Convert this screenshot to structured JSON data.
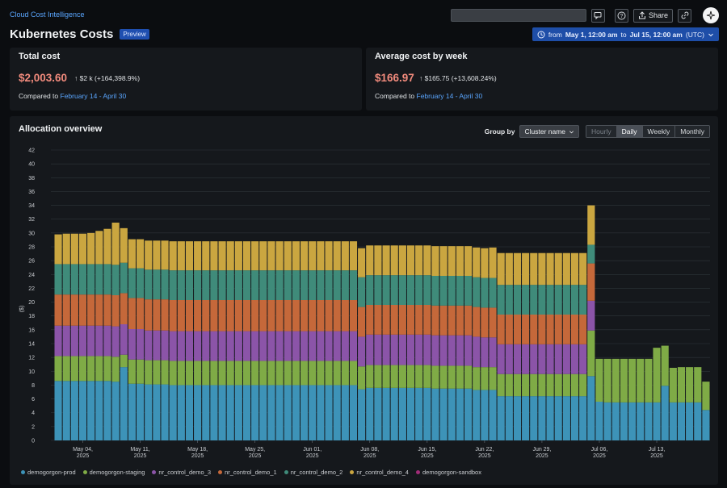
{
  "header": {
    "breadcrumb": "Cloud Cost Intelligence",
    "title": "Kubernetes Costs",
    "badge": "Preview",
    "share_label": "Share"
  },
  "time_range": {
    "prefix": "from",
    "start": "May 1, 12:00 am",
    "mid": "to",
    "end": "Jul 15, 12:00 am",
    "tz": "(UTC)"
  },
  "total_cost": {
    "title": "Total cost",
    "value": "$2,003.60",
    "delta": "$2 k (+164,398.9%)",
    "compared_prefix": "Compared to",
    "compared_range": "February 14 - April 30"
  },
  "avg_cost": {
    "title": "Average cost by week",
    "value": "$166.97",
    "delta": "$165.75 (+13,608.24%)",
    "compared_prefix": "Compared to",
    "compared_range": "February 14 - April 30"
  },
  "allocation": {
    "title": "Allocation overview",
    "group_by_label": "Group by",
    "group_by_value": "Cluster name",
    "granularity": [
      "Hourly",
      "Daily",
      "Weekly",
      "Monthly"
    ],
    "granularity_selected": "Daily",
    "granularity_disabled": "Hourly"
  },
  "chart_data": {
    "type": "bar",
    "stacked": true,
    "ylabel": "($)",
    "ylim": [
      0,
      42
    ],
    "yticks": [
      0,
      2,
      4,
      6,
      8,
      10,
      12,
      14,
      16,
      18,
      20,
      22,
      24,
      26,
      28,
      30,
      32,
      34,
      36,
      38,
      40,
      42
    ],
    "grid": true,
    "legend_position": "bottom-left",
    "x_tick_labels": [
      {
        "day": 3,
        "line1": "May 04,",
        "line2": "2025"
      },
      {
        "day": 10,
        "line1": "May 11,",
        "line2": "2025"
      },
      {
        "day": 17,
        "line1": "May 18,",
        "line2": "2025"
      },
      {
        "day": 24,
        "line1": "May 25,",
        "line2": "2025"
      },
      {
        "day": 31,
        "line1": "Jun 01,",
        "line2": "2025"
      },
      {
        "day": 38,
        "line1": "Jun 08,",
        "line2": "2025"
      },
      {
        "day": 45,
        "line1": "Jun 15,",
        "line2": "2025"
      },
      {
        "day": 52,
        "line1": "Jun 22,",
        "line2": "2025"
      },
      {
        "day": 59,
        "line1": "Jun 29,",
        "line2": "2025"
      },
      {
        "day": 66,
        "line1": "Jul 06,",
        "line2": "2025"
      },
      {
        "day": 73,
        "line1": "Jul 13,",
        "line2": "2025"
      }
    ],
    "series": [
      {
        "name": "demogorgon-prod",
        "color": "#3d93b8",
        "values": [
          8.6,
          8.6,
          8.6,
          8.6,
          8.6,
          8.6,
          8.6,
          8.5,
          10.6,
          8.2,
          8.2,
          8.1,
          8.1,
          8.1,
          8.0,
          8.0,
          8.0,
          8.0,
          8.0,
          8.0,
          8.0,
          8.0,
          8.0,
          8.0,
          8.0,
          8.0,
          8.0,
          8.0,
          8.0,
          8.0,
          8.0,
          8.0,
          8.0,
          8.0,
          8.0,
          8.0,
          8.0,
          7.4,
          7.6,
          7.6,
          7.6,
          7.6,
          7.6,
          7.6,
          7.6,
          7.6,
          7.5,
          7.5,
          7.5,
          7.5,
          7.5,
          7.3,
          7.3,
          7.3,
          6.4,
          6.4,
          6.4,
          6.4,
          6.4,
          6.4,
          6.4,
          6.4,
          6.4,
          6.4,
          6.4,
          9.3,
          5.6,
          5.5,
          5.5,
          5.5,
          5.5,
          5.5,
          5.5,
          5.5,
          7.9,
          5.5,
          5.5,
          5.5,
          5.5,
          4.4
        ]
      },
      {
        "name": "demogorgon-staging",
        "color": "#7fab46",
        "values": [
          3.6,
          3.6,
          3.6,
          3.6,
          3.6,
          3.6,
          3.6,
          3.6,
          1.8,
          3.5,
          3.5,
          3.5,
          3.5,
          3.5,
          3.5,
          3.5,
          3.5,
          3.5,
          3.5,
          3.5,
          3.5,
          3.5,
          3.5,
          3.5,
          3.5,
          3.5,
          3.5,
          3.5,
          3.5,
          3.5,
          3.5,
          3.5,
          3.5,
          3.5,
          3.5,
          3.5,
          3.5,
          3.3,
          3.3,
          3.3,
          3.3,
          3.3,
          3.3,
          3.3,
          3.3,
          3.3,
          3.3,
          3.3,
          3.3,
          3.3,
          3.3,
          3.3,
          3.3,
          3.3,
          3.2,
          3.2,
          3.2,
          3.2,
          3.2,
          3.2,
          3.2,
          3.2,
          3.2,
          3.2,
          3.2,
          6.6,
          6.2,
          6.3,
          6.3,
          6.3,
          6.3,
          6.3,
          6.3,
          7.9,
          5.8,
          5.0,
          5.1,
          5.1,
          5.1,
          4.1
        ]
      },
      {
        "name": "nr_control_demo_3",
        "color": "#8b54a8",
        "values": [
          4.4,
          4.4,
          4.4,
          4.4,
          4.4,
          4.4,
          4.4,
          4.4,
          4.4,
          4.4,
          4.4,
          4.3,
          4.3,
          4.3,
          4.3,
          4.3,
          4.3,
          4.3,
          4.3,
          4.3,
          4.3,
          4.3,
          4.3,
          4.3,
          4.3,
          4.3,
          4.3,
          4.3,
          4.3,
          4.3,
          4.3,
          4.3,
          4.3,
          4.3,
          4.3,
          4.3,
          4.3,
          4.3,
          4.4,
          4.4,
          4.4,
          4.4,
          4.4,
          4.4,
          4.4,
          4.4,
          4.4,
          4.4,
          4.4,
          4.4,
          4.4,
          4.4,
          4.3,
          4.3,
          4.3,
          4.3,
          4.3,
          4.3,
          4.3,
          4.3,
          4.3,
          4.3,
          4.3,
          4.3,
          4.3,
          4.3,
          0,
          0,
          0,
          0,
          0,
          0,
          0,
          0,
          0,
          0,
          0,
          0,
          0,
          0
        ]
      },
      {
        "name": "nr_control_demo_1",
        "color": "#c5683a",
        "values": [
          4.5,
          4.5,
          4.5,
          4.5,
          4.5,
          4.5,
          4.5,
          4.5,
          4.5,
          4.5,
          4.5,
          4.5,
          4.5,
          4.5,
          4.5,
          4.5,
          4.5,
          4.5,
          4.5,
          4.5,
          4.5,
          4.5,
          4.5,
          4.5,
          4.5,
          4.5,
          4.5,
          4.5,
          4.5,
          4.5,
          4.5,
          4.5,
          4.5,
          4.5,
          4.5,
          4.5,
          4.5,
          4.3,
          4.3,
          4.3,
          4.3,
          4.3,
          4.3,
          4.3,
          4.3,
          4.3,
          4.3,
          4.3,
          4.3,
          4.3,
          4.3,
          4.3,
          4.3,
          4.3,
          4.3,
          4.3,
          4.3,
          4.3,
          4.3,
          4.3,
          4.3,
          4.3,
          4.3,
          4.3,
          4.3,
          5.4,
          0,
          0,
          0,
          0,
          0,
          0,
          0,
          0,
          0,
          0,
          0,
          0,
          0,
          0
        ]
      },
      {
        "name": "nr_control_demo_2",
        "color": "#3f8b7a",
        "values": [
          4.4,
          4.4,
          4.4,
          4.4,
          4.4,
          4.4,
          4.4,
          4.4,
          4.4,
          4.3,
          4.3,
          4.3,
          4.3,
          4.3,
          4.3,
          4.3,
          4.3,
          4.3,
          4.3,
          4.3,
          4.3,
          4.3,
          4.3,
          4.3,
          4.3,
          4.3,
          4.3,
          4.3,
          4.3,
          4.3,
          4.3,
          4.3,
          4.3,
          4.3,
          4.3,
          4.3,
          4.3,
          4.3,
          4.3,
          4.3,
          4.3,
          4.3,
          4.3,
          4.3,
          4.3,
          4.3,
          4.3,
          4.3,
          4.3,
          4.3,
          4.3,
          4.3,
          4.3,
          4.3,
          4.3,
          4.3,
          4.3,
          4.3,
          4.3,
          4.3,
          4.3,
          4.3,
          4.3,
          4.3,
          4.3,
          2.7,
          0,
          0,
          0,
          0,
          0,
          0,
          0,
          0,
          0,
          0,
          0,
          0,
          0,
          0
        ]
      },
      {
        "name": "nr_control_demo_4",
        "color": "#caa640",
        "values": [
          4.3,
          4.4,
          4.4,
          4.4,
          4.5,
          4.8,
          5.1,
          6.1,
          5.0,
          4.2,
          4.2,
          4.2,
          4.2,
          4.2,
          4.2,
          4.2,
          4.2,
          4.2,
          4.2,
          4.2,
          4.2,
          4.2,
          4.2,
          4.2,
          4.2,
          4.2,
          4.2,
          4.2,
          4.2,
          4.2,
          4.2,
          4.2,
          4.2,
          4.2,
          4.2,
          4.2,
          4.2,
          4.2,
          4.3,
          4.3,
          4.3,
          4.3,
          4.3,
          4.3,
          4.3,
          4.3,
          4.3,
          4.3,
          4.3,
          4.3,
          4.3,
          4.3,
          4.3,
          4.4,
          4.6,
          4.6,
          4.6,
          4.6,
          4.6,
          4.6,
          4.6,
          4.6,
          4.6,
          4.6,
          4.6,
          5.7,
          0,
          0,
          0,
          0,
          0,
          0,
          0,
          0,
          0,
          0,
          0,
          0,
          0,
          0
        ]
      },
      {
        "name": "demogorgon-sandbox",
        "color": "#a12c78",
        "values": [
          0,
          0,
          0,
          0,
          0,
          0,
          0,
          0,
          0,
          0,
          0,
          0,
          0,
          0,
          0,
          0,
          0,
          0,
          0,
          0,
          0,
          0,
          0,
          0,
          0,
          0,
          0,
          0,
          0,
          0,
          0,
          0,
          0,
          0,
          0,
          0,
          0,
          0,
          0,
          0,
          0,
          0,
          0,
          0,
          0,
          0,
          0,
          0,
          0,
          0,
          0,
          0,
          0,
          0,
          0,
          0,
          0,
          0,
          0,
          0,
          0,
          0,
          0,
          0,
          0,
          0,
          0,
          0,
          0,
          0,
          0,
          0,
          0,
          0,
          0,
          0,
          0,
          0,
          0,
          0
        ]
      }
    ]
  }
}
